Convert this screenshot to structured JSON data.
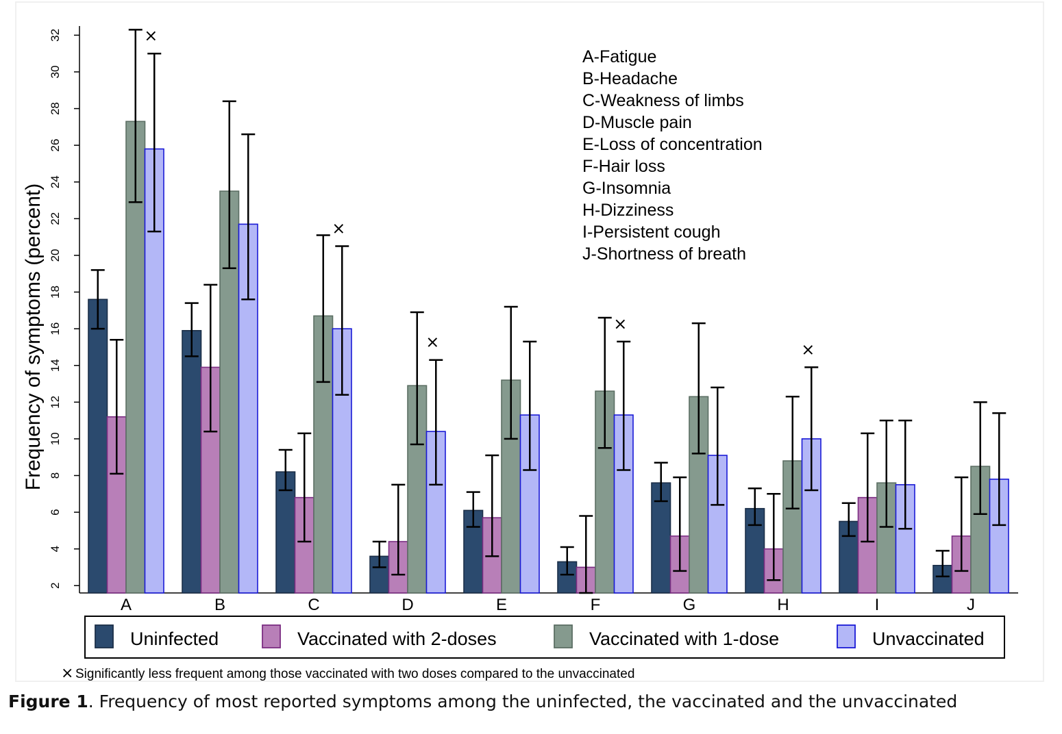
{
  "caption": {
    "label": "Figure 1",
    "text": ". Frequency of most reported symptoms among the uninfected, the vaccinated and the unvaccinated"
  },
  "chart_data": {
    "type": "bar",
    "ylabel": "Frequency of symptoms (percent)",
    "xlabel": "",
    "ylim": [
      1.6,
      32.5
    ],
    "yticks": [
      2,
      4,
      6,
      8,
      10,
      12,
      14,
      16,
      18,
      20,
      22,
      24,
      26,
      28,
      30,
      32
    ],
    "categories": [
      "A",
      "B",
      "C",
      "D",
      "E",
      "F",
      "G",
      "H",
      "I",
      "J"
    ],
    "category_legend": [
      "A-Fatigue",
      "B-Headache",
      "C-Weakness of limbs",
      "D-Muscle pain",
      "E-Loss of concentration",
      "F-Hair loss",
      "G-Insomnia",
      "H-Dizziness",
      "I-Persistent cough",
      "J-Shortness of breath"
    ],
    "legend_position": "bottom",
    "grid": false,
    "series": [
      {
        "name": "Uninfected",
        "fill": "#2b4a6e",
        "stroke": "#1c2f48",
        "values": [
          17.6,
          15.9,
          8.2,
          3.6,
          6.1,
          3.3,
          7.6,
          6.2,
          5.5,
          3.1
        ],
        "ci_low": [
          16.0,
          14.5,
          7.2,
          3.0,
          5.2,
          2.6,
          6.6,
          5.3,
          4.7,
          2.5
        ],
        "ci_high": [
          19.2,
          17.4,
          9.4,
          4.4,
          7.1,
          4.1,
          8.7,
          7.3,
          6.5,
          3.9
        ]
      },
      {
        "name": "Vaccinated with 2-doses",
        "fill": "#b87fb8",
        "stroke": "#7b2d82",
        "values": [
          11.2,
          13.9,
          6.8,
          4.4,
          5.7,
          3.0,
          4.7,
          4.0,
          6.8,
          4.7
        ],
        "ci_low": [
          8.1,
          10.4,
          4.4,
          2.6,
          3.6,
          1.6,
          2.8,
          2.3,
          4.4,
          2.8
        ],
        "ci_high": [
          15.4,
          18.4,
          10.3,
          7.5,
          9.1,
          5.8,
          7.9,
          7.0,
          10.3,
          7.9
        ]
      },
      {
        "name": "Vaccinated with 1-dose",
        "fill": "#859a8e",
        "stroke": "#5c6f64",
        "values": [
          27.3,
          23.5,
          16.7,
          12.9,
          13.2,
          12.6,
          12.3,
          8.8,
          7.6,
          8.5
        ],
        "ci_low": [
          22.9,
          19.3,
          13.1,
          9.7,
          10.0,
          9.5,
          9.2,
          6.2,
          5.2,
          5.9
        ],
        "ci_high": [
          32.3,
          28.4,
          21.1,
          16.9,
          17.2,
          16.6,
          16.3,
          12.3,
          11.0,
          12.0
        ]
      },
      {
        "name": "Unvaccinated",
        "fill": "#b3b7f7",
        "stroke": "#1a1ad6",
        "values": [
          25.8,
          21.7,
          16.0,
          10.4,
          11.3,
          11.3,
          9.1,
          10.0,
          7.5,
          7.8
        ],
        "ci_low": [
          21.3,
          17.6,
          12.4,
          7.5,
          8.3,
          8.3,
          6.4,
          7.2,
          5.1,
          5.3
        ],
        "ci_high": [
          31.0,
          26.6,
          20.5,
          14.3,
          15.3,
          15.3,
          12.8,
          13.9,
          11.0,
          11.4
        ]
      }
    ],
    "significance_marker": "×",
    "significant_categories": [
      "A",
      "C",
      "D",
      "F",
      "H"
    ],
    "footnote": "Significantly less frequent among those vaccinated with two doses compared to the unvaccinated"
  }
}
